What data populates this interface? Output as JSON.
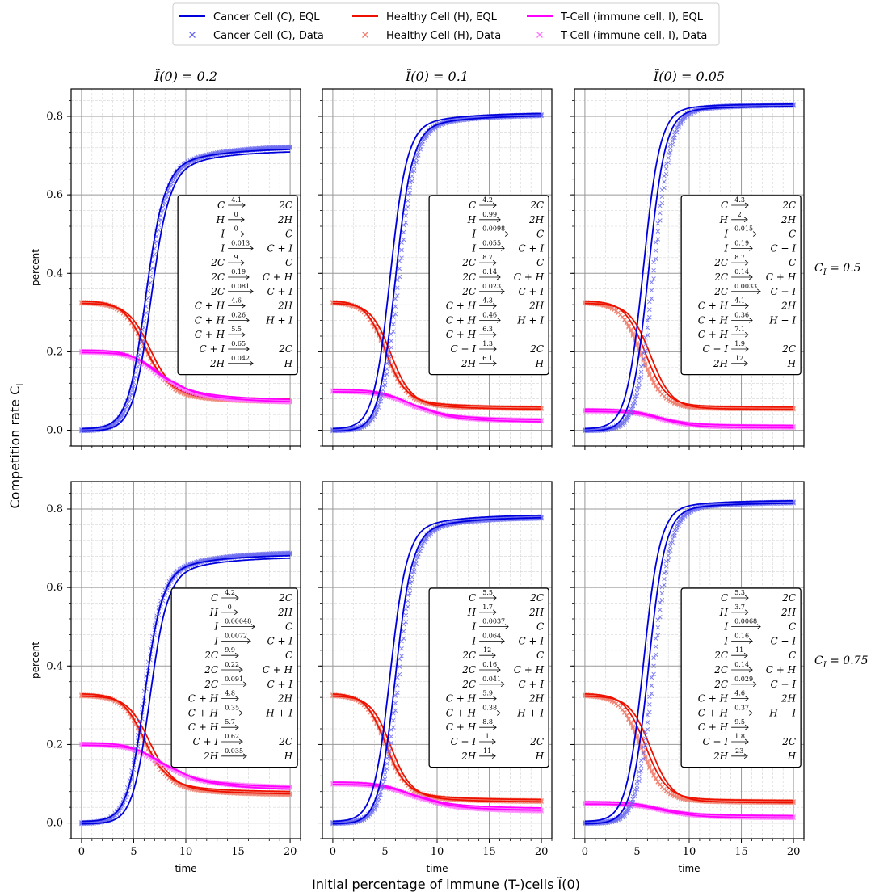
{
  "figure": {
    "xlabel": "Initial percentage of immune (T-)cells Ĩ(0)",
    "ylabel": "Competition rate C",
    "ylabel_sub": "I"
  },
  "legend": [
    {
      "label": "Cancer Cell (C), EQL",
      "color": "#0000dd",
      "kind": "line"
    },
    {
      "label": "Cancer Cell (C), Data",
      "color": "#6a6af0",
      "kind": "marker"
    },
    {
      "label": "Healthy Cell (H), EQL",
      "color": "#ee1100",
      "kind": "line"
    },
    {
      "label": "Healthy Cell (H), Data",
      "color": "#f08070",
      "kind": "marker"
    },
    {
      "label": "T-Cell (immune cell, I), EQL",
      "color": "#ff00ff",
      "kind": "line"
    },
    {
      "label": "T-Cell (immune cell, I), Data",
      "color": "#ff77ff",
      "kind": "marker"
    }
  ],
  "chart_data": {
    "type": "line",
    "x": {
      "label": "time",
      "range": [
        -1,
        21
      ],
      "ticks": [
        0,
        5,
        10,
        15,
        20
      ]
    },
    "y": {
      "label": "percent",
      "range": [
        -0.04,
        0.87
      ],
      "ticks": [
        0.0,
        0.2,
        0.4,
        0.6,
        0.8
      ],
      "tick_labels": [
        "0.0",
        "0.2",
        "0.4",
        "0.6",
        "0.8"
      ]
    },
    "columns": [
      {
        "title": "Ĩ(0) = 0.2",
        "I0": 0.2
      },
      {
        "title": "Ĩ(0) = 0.1",
        "I0": 0.1
      },
      {
        "title": "Ĩ(0) = 0.05",
        "I0": 0.05
      }
    ],
    "rows": [
      {
        "label": "C_I = 0.5",
        "label_main": "C",
        "label_sub": "I",
        "label_val": " = 0.5"
      },
      {
        "label": "C_I = 0.75",
        "label_main": "C",
        "label_sub": "I",
        "label_val": " = 0.75"
      }
    ],
    "reaction_lhs": [
      "C",
      "H",
      "I",
      "I",
      "2C",
      "2C",
      "2C",
      "C + H",
      "C + H",
      "C + H",
      "C + I",
      "2H"
    ],
    "reaction_rhs": [
      "2C",
      "2H",
      "C",
      "C + I",
      "C",
      "C + H",
      "C + I",
      "2H",
      "H + I",
      "",
      "2C",
      "H"
    ],
    "panels": [
      {
        "row": 0,
        "col": 0,
        "rates": [
          "4.1",
          "0",
          "0",
          "0.013",
          "9",
          "0.19",
          "0.081",
          "4.6",
          "0.26",
          "5.5",
          "0.65",
          "0.042"
        ],
        "series": {
          "C": {
            "start": 0.0,
            "final": 0.725,
            "plateau": 0.67,
            "t_mid": 6.3,
            "steep": 1.15,
            "eql_final": 0.715,
            "eql_shift": 0.1
          },
          "H": {
            "start": 0.325,
            "final": 0.072,
            "plateau": 0.095,
            "t_mid": 6.1,
            "steep": 0.95,
            "eql_final": 0.075,
            "eql_shift": 0.2
          },
          "I": {
            "start": 0.2,
            "final": 0.07,
            "plateau": 0.105,
            "t_mid": 6.8,
            "steep": 0.85,
            "eql_final": 0.072,
            "eql_shift": 0.2
          }
        }
      },
      {
        "row": 0,
        "col": 1,
        "rates": [
          "4.2",
          "0.99",
          "0.0098",
          "0.055",
          "8.7",
          "0.14",
          "0.023",
          "4.3",
          "0.46",
          "6.3",
          "1.3",
          "6.1"
        ],
        "series": {
          "C": {
            "start": 0.0,
            "final": 0.805,
            "plateau": 0.775,
            "t_mid": 6.3,
            "steep": 1.25,
            "eql_final": 0.805,
            "eql_shift": -0.55
          },
          "H": {
            "start": 0.325,
            "final": 0.055,
            "plateau": 0.07,
            "t_mid": 5.1,
            "steep": 1.05,
            "eql_final": 0.055,
            "eql_shift": 0.2
          },
          "I": {
            "start": 0.1,
            "final": 0.023,
            "plateau": 0.04,
            "t_mid": 7.0,
            "steep": 0.75,
            "eql_final": 0.022,
            "eql_shift": 0.2
          }
        }
      },
      {
        "row": 0,
        "col": 2,
        "rates": [
          "4.3",
          "2",
          "0.015",
          "0.19",
          "8.7",
          "0.14",
          "0.0033",
          "4.1",
          "0.36",
          "7.1",
          "1.9",
          "12"
        ],
        "series": {
          "C": {
            "start": 0.0,
            "final": 0.83,
            "plateau": 0.815,
            "t_mid": 6.6,
            "steep": 1.25,
            "eql_final": 0.828,
            "eql_shift": -0.75
          },
          "H": {
            "start": 0.325,
            "final": 0.055,
            "plateau": 0.06,
            "t_mid": 5.4,
            "steep": 1.0,
            "eql_final": 0.055,
            "eql_shift": 0.65
          },
          "I": {
            "start": 0.05,
            "final": 0.008,
            "plateau": 0.012,
            "t_mid": 7.0,
            "steep": 0.75,
            "eql_final": 0.008,
            "eql_shift": 0.1
          }
        }
      },
      {
        "row": 1,
        "col": 0,
        "rates": [
          "4.2",
          "0",
          "0.00048",
          "0.0072",
          "9.9",
          "0.22",
          "0.091",
          "4.8",
          "0.35",
          "5.7",
          "0.62",
          "0.035"
        ],
        "series": {
          "C": {
            "start": 0.0,
            "final": 0.69,
            "plateau": 0.64,
            "t_mid": 6.0,
            "steep": 1.2,
            "eql_final": 0.68,
            "eql_shift": 0.3
          },
          "H": {
            "start": 0.325,
            "final": 0.072,
            "plateau": 0.095,
            "t_mid": 6.0,
            "steep": 0.95,
            "eql_final": 0.075,
            "eql_shift": 0.25
          },
          "I": {
            "start": 0.2,
            "final": 0.088,
            "plateau": 0.12,
            "t_mid": 7.0,
            "steep": 0.8,
            "eql_final": 0.085,
            "eql_shift": 0.2
          }
        }
      },
      {
        "row": 1,
        "col": 1,
        "rates": [
          "5.5",
          "1.7",
          "0.0037",
          "0.064",
          "12",
          "0.16",
          "0.041",
          "5.9",
          "0.38",
          "8.8",
          "1",
          "11"
        ],
        "series": {
          "C": {
            "start": 0.0,
            "final": 0.78,
            "plateau": 0.75,
            "t_mid": 6.3,
            "steep": 1.25,
            "eql_final": 0.782,
            "eql_shift": -0.55
          },
          "H": {
            "start": 0.325,
            "final": 0.055,
            "plateau": 0.07,
            "t_mid": 5.1,
            "steep": 1.05,
            "eql_final": 0.055,
            "eql_shift": 0.2
          },
          "I": {
            "start": 0.1,
            "final": 0.03,
            "plateau": 0.05,
            "t_mid": 7.0,
            "steep": 0.75,
            "eql_final": 0.033,
            "eql_shift": 0.2
          }
        }
      },
      {
        "row": 1,
        "col": 2,
        "rates": [
          "5.3",
          "3.7",
          "0.0068",
          "0.16",
          "11",
          "0.14",
          "0.029",
          "4.6",
          "0.37",
          "9.5",
          "1.8",
          "23"
        ],
        "series": {
          "C": {
            "start": 0.0,
            "final": 0.818,
            "plateau": 0.8,
            "t_mid": 6.6,
            "steep": 1.25,
            "eql_final": 0.818,
            "eql_shift": -0.75
          },
          "H": {
            "start": 0.325,
            "final": 0.053,
            "plateau": 0.06,
            "t_mid": 5.4,
            "steep": 1.0,
            "eql_final": 0.053,
            "eql_shift": 0.65
          },
          "I": {
            "start": 0.05,
            "final": 0.014,
            "plateau": 0.02,
            "t_mid": 7.0,
            "steep": 0.75,
            "eql_final": 0.014,
            "eql_shift": 0.1
          }
        }
      }
    ]
  }
}
